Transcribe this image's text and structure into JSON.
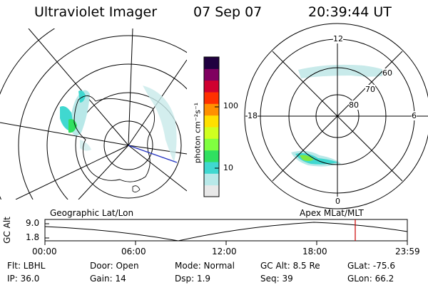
{
  "header": {
    "instrument": "Ultraviolet Imager",
    "date": "07 Sep 07",
    "time": "20:39:44 UT"
  },
  "colorbar": {
    "unit_label": "photon cm⁻²s⁻¹",
    "ticks": [
      "100",
      "10"
    ],
    "scale": "log",
    "colors": [
      "#e8e8e8",
      "#b8e8e8",
      "#40d8d0",
      "#30e060",
      "#80ff40",
      "#d0ff20",
      "#ffe000",
      "#ff9000",
      "#ff3000",
      "#d00030",
      "#800060",
      "#200040"
    ]
  },
  "geo_panel": {
    "label": "Geographic Lat/Lon"
  },
  "mag_panel": {
    "label": "Apex  MLat/MLT",
    "mlt_labels": {
      "top": "12",
      "left": "18",
      "right": "6",
      "bottom": "0"
    },
    "lat_labels": [
      "60",
      "70",
      "80"
    ]
  },
  "alt_plot": {
    "ylabel": "GC Alt",
    "y_ticks": [
      "9.0",
      "1.8"
    ],
    "x_ticks": [
      "00:00",
      "06:00",
      "12:00",
      "18:00",
      "23:59"
    ],
    "current_marker_color": "#cc0000"
  },
  "info": {
    "filter": "Flt: LBHL",
    "ip": "IP: 36.0",
    "door": "Door: Open",
    "gain": "Gain: 14",
    "mode": "Mode: Normal",
    "dsp": "Dsp:     1.9",
    "gc_alt": "GC Alt: 8.5 Re",
    "seq": "Seq: 39",
    "glat": "GLat:  -75.6",
    "glon": "GLon:  66.2"
  }
}
